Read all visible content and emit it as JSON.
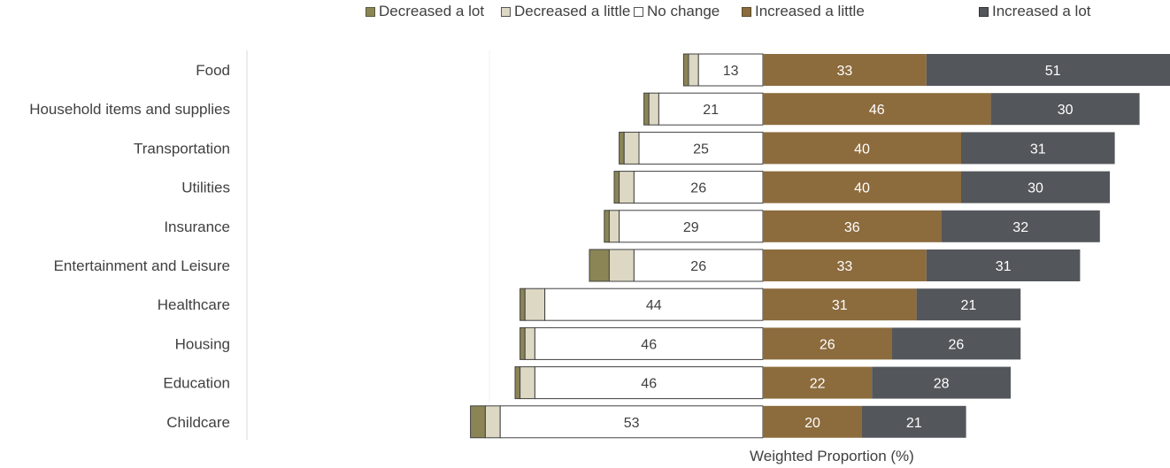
{
  "chart_data": {
    "type": "bar",
    "orientation": "horizontal",
    "stacked": "diverging",
    "title": "",
    "xlabel": "Weighted Proportion (%)",
    "ylabel": "",
    "categories": [
      "Food",
      "Household items and supplies",
      "Transportation",
      "Utilities",
      "Insurance",
      "Entertainment and Leisure",
      "Healthcare",
      "Housing",
      "Education",
      "Childcare"
    ],
    "series": [
      {
        "name": "Decreased a lot",
        "color": "#8b8455",
        "values": [
          1,
          1,
          1,
          1,
          1,
          4,
          1,
          1,
          1,
          3
        ]
      },
      {
        "name": "Decreased a little",
        "color": "#ddd8c4",
        "values": [
          2,
          2,
          3,
          3,
          2,
          5,
          4,
          2,
          3,
          3
        ]
      },
      {
        "name": "No change",
        "color": "#ffffff",
        "values": [
          13,
          21,
          25,
          26,
          29,
          26,
          44,
          46,
          46,
          53
        ]
      },
      {
        "name": "Increased a little",
        "color": "#8c6b3d",
        "values": [
          33,
          46,
          40,
          40,
          36,
          33,
          31,
          26,
          22,
          20
        ]
      },
      {
        "name": "Increased a lot",
        "color": "#53565a",
        "values": [
          51,
          30,
          31,
          30,
          32,
          31,
          21,
          26,
          28,
          21
        ]
      }
    ],
    "data_labels": {
      "No change": [
        13,
        21,
        25,
        26,
        29,
        26,
        44,
        46,
        46,
        53
      ],
      "Increased a little": [
        33,
        46,
        40,
        40,
        36,
        33,
        31,
        26,
        22,
        20
      ],
      "Increased a lot": [
        51,
        30,
        31,
        30,
        32,
        31,
        21,
        26,
        28,
        21
      ]
    },
    "legend_position": "top",
    "grid": false
  }
}
